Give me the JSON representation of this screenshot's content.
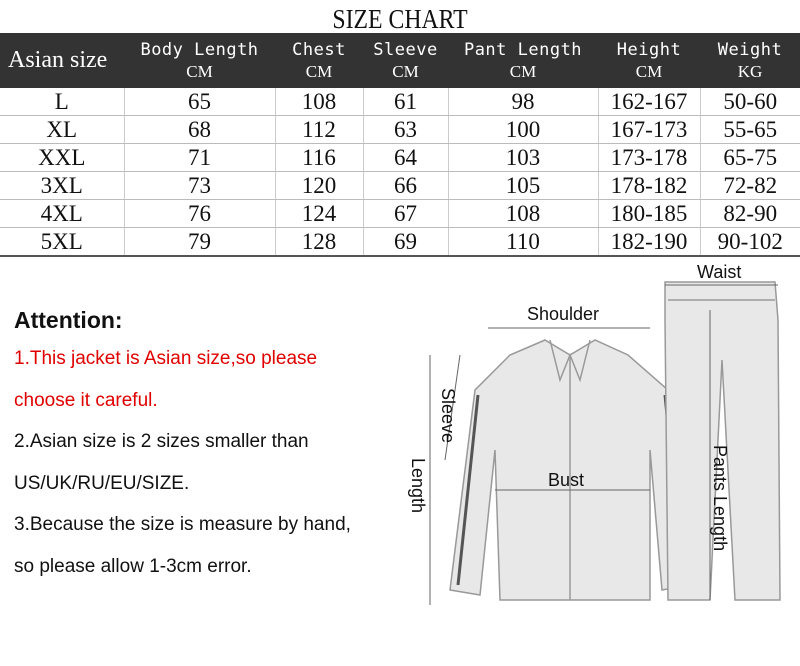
{
  "title": "SIZE CHART",
  "table": {
    "headers": [
      {
        "name": "Asian size",
        "unit": ""
      },
      {
        "name": "Body Length",
        "unit": "CM"
      },
      {
        "name": "Chest",
        "unit": "CM"
      },
      {
        "name": "Sleeve",
        "unit": "CM"
      },
      {
        "name": "Pant Length",
        "unit": "CM"
      },
      {
        "name": "Height",
        "unit": "CM"
      },
      {
        "name": "Weight",
        "unit": "KG"
      }
    ],
    "rows": [
      [
        "L",
        "65",
        "108",
        "61",
        "98",
        "162-167",
        "50-60"
      ],
      [
        "XL",
        "68",
        "112",
        "63",
        "100",
        "167-173",
        "55-65"
      ],
      [
        "XXL",
        "71",
        "116",
        "64",
        "103",
        "173-178",
        "65-75"
      ],
      [
        "3XL",
        "73",
        "120",
        "66",
        "105",
        "178-182",
        "72-82"
      ],
      [
        "4XL",
        "76",
        "124",
        "67",
        "108",
        "180-185",
        "82-90"
      ],
      [
        "5XL",
        "79",
        "128",
        "69",
        "110",
        "182-190",
        "90-102"
      ]
    ]
  },
  "attention": {
    "heading": "Attention:",
    "lines": [
      {
        "text": "1.This jacket is Asian size,so please",
        "color": "#e00000"
      },
      {
        "text": "choose it careful.",
        "color": "#e00000"
      },
      {
        "text": "2.Asian size is 2 sizes smaller than",
        "color": "#111111"
      },
      {
        "text": " US/UK/RU/EU/SIZE.",
        "color": "#111111"
      },
      {
        "text": "3.Because the size is measure by hand,",
        "color": "#111111"
      },
      {
        "text": "so please allow 1-3cm error.",
        "color": "#111111"
      }
    ]
  },
  "illustration": {
    "labels": {
      "waist": "Waist",
      "shoulder": "Shoulder",
      "sleeve": "Sleeve",
      "length": "Length",
      "bust": "Bust",
      "pants_length": "Pants Length"
    }
  },
  "colors": {
    "header_bg": "#333333",
    "attention_red": "#e00000"
  }
}
